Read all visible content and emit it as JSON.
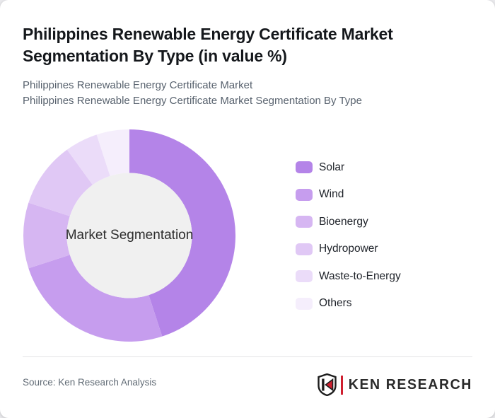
{
  "header": {
    "title": "Philippines Renewable Energy Certificate Market Segmentation By Type (in value %)",
    "subtitle_line1": "Philippines Renewable Energy Certificate Market",
    "subtitle_line2": "Philippines Renewable Energy Certificate Market Segmentation By Type"
  },
  "chart_data": {
    "type": "pie",
    "variant": "donut",
    "title": "Philippines Renewable Energy Certificate Market Segmentation By Type (in value %)",
    "center_label": "Market Segmentation",
    "unit": "value %",
    "categories": [
      "Solar",
      "Wind",
      "Bioenergy",
      "Hydropower",
      "Waste-to-Energy",
      "Others"
    ],
    "values": [
      45,
      25,
      10,
      10,
      5,
      5
    ],
    "colors": [
      "#b484e8",
      "#c69dee",
      "#d6b6f2",
      "#e0c8f5",
      "#ebdcf9",
      "#f5eefc"
    ],
    "start_angle_deg": 0,
    "direction": "clockwise",
    "inner_radius_ratio": 0.59,
    "center_fill": "#f0f0f0",
    "legend_position": "right"
  },
  "footer": {
    "source": "Source: Ken Research Analysis",
    "logo": {
      "shield_letter": "K",
      "brand": "KEN RESEARCH",
      "accent_color": "#cf1f2f",
      "dark_color": "#2b2b2b"
    }
  }
}
